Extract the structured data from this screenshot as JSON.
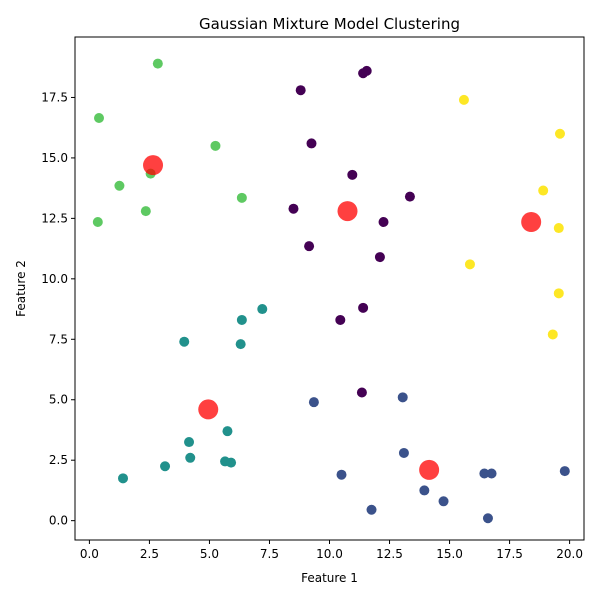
{
  "chart_data": {
    "type": "scatter",
    "title": "Gaussian Mixture Model Clustering",
    "xlabel": "Feature 1",
    "ylabel": "Feature 2",
    "xlim": [
      -0.6,
      20.6
    ],
    "ylim": [
      -0.8,
      20.0
    ],
    "xticks": [
      "0.0",
      "2.5",
      "5.0",
      "7.5",
      "10.0",
      "12.5",
      "15.0",
      "17.5",
      "20.0"
    ],
    "yticks": [
      "0.0",
      "2.5",
      "5.0",
      "7.5",
      "10.0",
      "12.5",
      "15.0",
      "17.5"
    ],
    "grid": false,
    "legend": "none",
    "clusters": [
      {
        "color": "#440154",
        "points": [
          [
            8.8,
            17.8
          ],
          [
            11.4,
            18.5
          ],
          [
            11.55,
            18.6
          ],
          [
            9.25,
            15.6
          ],
          [
            10.95,
            14.3
          ],
          [
            13.35,
            13.4
          ],
          [
            8.5,
            12.9
          ],
          [
            12.25,
            12.35
          ],
          [
            9.15,
            11.35
          ],
          [
            12.1,
            10.9
          ],
          [
            11.4,
            8.8
          ],
          [
            10.45,
            8.3
          ],
          [
            11.35,
            5.3
          ]
        ]
      },
      {
        "color": "#3b528b",
        "points": [
          [
            9.35,
            4.9
          ],
          [
            13.05,
            5.1
          ],
          [
            13.1,
            2.8
          ],
          [
            10.5,
            1.9
          ],
          [
            16.45,
            1.95
          ],
          [
            16.75,
            1.95
          ],
          [
            19.8,
            2.05
          ],
          [
            13.95,
            1.25
          ],
          [
            14.75,
            0.8
          ],
          [
            11.75,
            0.45
          ],
          [
            16.6,
            0.1
          ]
        ]
      },
      {
        "color": "#21918c",
        "points": [
          [
            7.2,
            8.75
          ],
          [
            6.35,
            8.3
          ],
          [
            3.95,
            7.4
          ],
          [
            6.3,
            7.3
          ],
          [
            5.75,
            3.7
          ],
          [
            4.15,
            3.25
          ],
          [
            4.2,
            2.6
          ],
          [
            5.65,
            2.45
          ],
          [
            5.9,
            2.4
          ],
          [
            3.15,
            2.25
          ],
          [
            1.4,
            1.75
          ]
        ]
      },
      {
        "color": "#5ec962",
        "points": [
          [
            2.85,
            18.9
          ],
          [
            0.4,
            16.65
          ],
          [
            5.25,
            15.5
          ],
          [
            2.55,
            14.35
          ],
          [
            1.25,
            13.85
          ],
          [
            6.35,
            13.35
          ],
          [
            2.35,
            12.8
          ],
          [
            0.35,
            12.35
          ]
        ]
      },
      {
        "color": "#fde725",
        "points": [
          [
            15.6,
            17.4
          ],
          [
            19.6,
            16.0
          ],
          [
            18.9,
            13.65
          ],
          [
            19.55,
            12.1
          ],
          [
            15.85,
            10.6
          ],
          [
            19.55,
            9.4
          ],
          [
            19.3,
            7.7
          ]
        ]
      }
    ],
    "centroids": {
      "color": "#ff0000",
      "points": [
        [
          2.65,
          14.7
        ],
        [
          10.75,
          12.8
        ],
        [
          18.4,
          12.35
        ],
        [
          4.95,
          4.6
        ],
        [
          14.15,
          2.1
        ]
      ]
    }
  }
}
